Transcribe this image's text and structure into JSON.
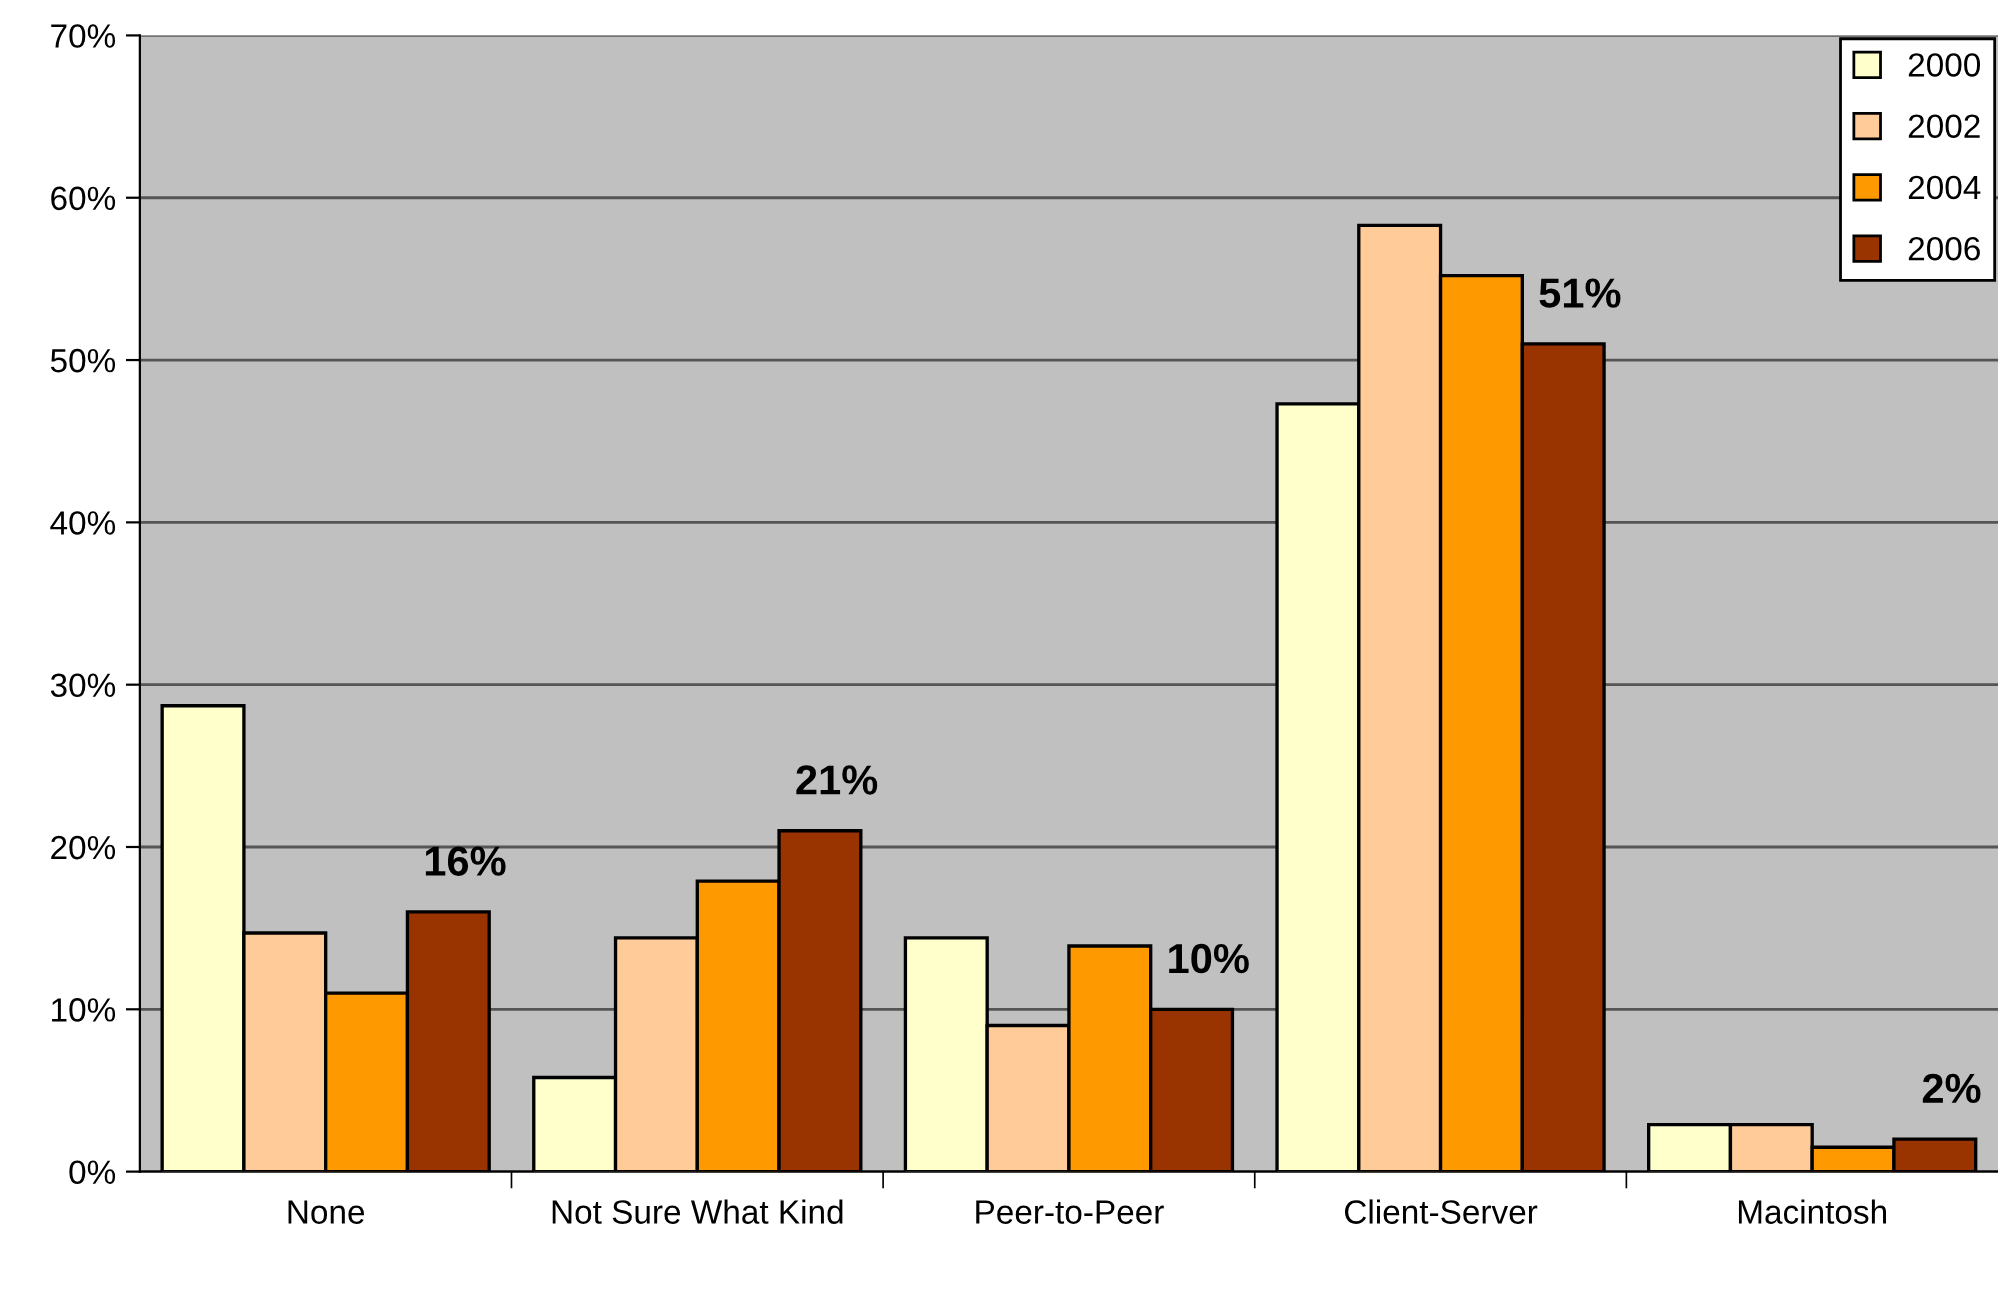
{
  "chart_data": {
    "type": "bar",
    "categories": [
      "None",
      "Not Sure What Kind",
      "Peer-to-Peer",
      "Client-Server",
      "Macintosh"
    ],
    "series": [
      {
        "name": "2000",
        "color": "#ffffcc",
        "values": [
          28.7,
          5.8,
          14.4,
          47.3,
          2.9
        ]
      },
      {
        "name": "2002",
        "color": "#ffcc99",
        "values": [
          14.7,
          14.4,
          9.0,
          58.3,
          2.9
        ]
      },
      {
        "name": "2004",
        "color": "#ff9900",
        "values": [
          11.0,
          17.9,
          13.9,
          55.2,
          1.5
        ]
      },
      {
        "name": "2006",
        "color": "#993300",
        "values": [
          16,
          21,
          10,
          51,
          2
        ],
        "value_labels": [
          "16%",
          "21%",
          "10%",
          "51%",
          "2%"
        ]
      }
    ],
    "ylim": [
      0,
      70
    ],
    "yticks": [
      {
        "value": 0,
        "label": "0%"
      },
      {
        "value": 10,
        "label": "10%"
      },
      {
        "value": 20,
        "label": "20%"
      },
      {
        "value": 30,
        "label": "30%"
      },
      {
        "value": 40,
        "label": "40%"
      },
      {
        "value": 50,
        "label": "50%"
      },
      {
        "value": 60,
        "label": "60%"
      },
      {
        "value": 70,
        "label": "70%"
      }
    ],
    "grid": "y",
    "legend": "top right"
  }
}
